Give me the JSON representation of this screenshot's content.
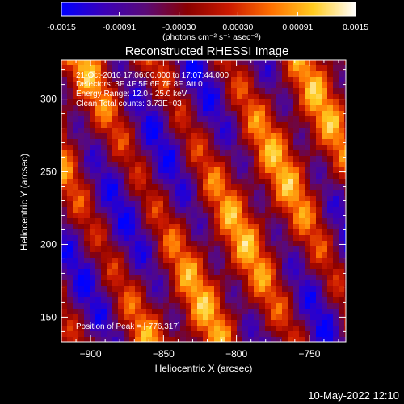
{
  "colorbar": {
    "tick_labels": [
      "-0.0015",
      "-0.00091",
      "-0.00030",
      "0.00030",
      "0.00091",
      "0.0015"
    ],
    "unit_label": "(photons cm⁻² s⁻¹ asec⁻²)",
    "colors": [
      "#0000ff",
      "#3a00b8",
      "#5a0a78",
      "#8a0000",
      "#cc1a00",
      "#ff7000",
      "#ffcc20",
      "#ffffff"
    ]
  },
  "chart_data": {
    "type": "heatmap",
    "title": "Reconstructed RHESSI Image",
    "xlabel": "Heliocentric X (arcsec)",
    "ylabel": "Heliocentric Y (arcsec)",
    "xlim": [
      -920,
      -725
    ],
    "ylim": [
      133,
      327
    ],
    "x_ticks": [
      -900,
      -850,
      -800,
      -750
    ],
    "y_ticks": [
      150,
      200,
      250,
      300
    ],
    "value_range": [
      -0.0015,
      0.0015
    ],
    "annotations": {
      "time_range": "21-Oct-2010 17:06:00.000 to 17:07:44.000",
      "detectors": "Detectors: 3F 4F 5F 6F 7F 8F, Att 0",
      "energy_range": "Energy Range: 12.0 - 25.0 keV",
      "method_counts": "Clean    Total counts: 3.73E+03",
      "peak_position": "Position of Peak = [-776,317]"
    }
  },
  "footer": {
    "timestamp": "10-May-2022 12:10"
  }
}
